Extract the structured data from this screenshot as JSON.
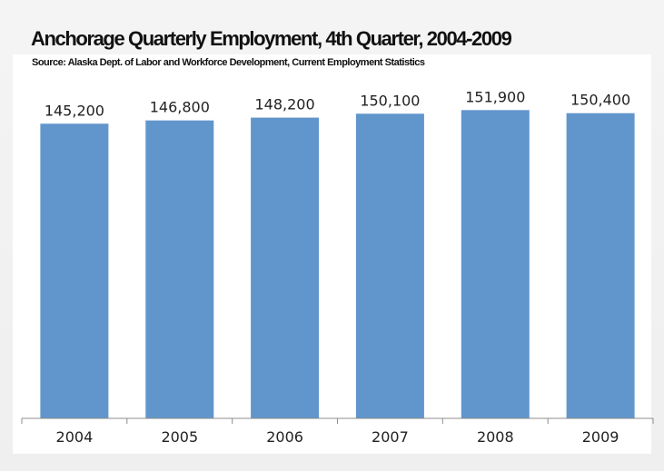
{
  "chart_data": {
    "type": "bar",
    "title": "Anchorage Quarterly Employment, 4th Quarter, 2004-2009",
    "subtitle": "Source:  Alaska Dept. of Labor and Workforce Development, Current Employment Statistics",
    "categories": [
      "2004",
      "2005",
      "2006",
      "2007",
      "2008",
      "2009"
    ],
    "values": [
      145200,
      146800,
      148200,
      150100,
      151900,
      150400
    ],
    "data_labels": [
      "145,200",
      "146,800",
      "148,200",
      "150,100",
      "151,900",
      "150,400"
    ],
    "xlabel": "",
    "ylabel": "",
    "ylim": [
      0,
      165000
    ],
    "y_axis_visible": false,
    "grid": false,
    "legend": "none",
    "bar_color": "#6196cc",
    "axis_color": "#8c8c8c"
  }
}
